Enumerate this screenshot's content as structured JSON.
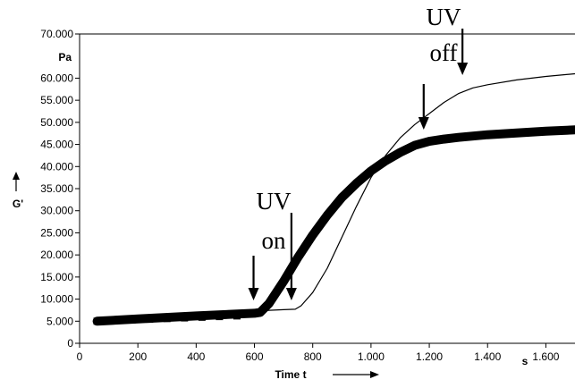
{
  "chart_data": {
    "type": "line",
    "title": "",
    "xlabel": "Time t",
    "xunit": "s",
    "ylabel": "G'",
    "yunit": "Pa",
    "xlim": [
      0,
      1700
    ],
    "ylim": [
      0,
      70000
    ],
    "x_tick_values": [
      0,
      200,
      400,
      600,
      800,
      1000,
      1200,
      1400,
      1600
    ],
    "x_tick_labels": [
      "0",
      "200",
      "400",
      "600",
      "800",
      "1.000",
      "1.200",
      "1.400",
      "1.600"
    ],
    "y_tick_values": [
      0,
      5000,
      10000,
      15000,
      20000,
      25000,
      30000,
      35000,
      40000,
      45000,
      50000,
      55000,
      60000,
      70000
    ],
    "y_tick_labels": [
      "0",
      "5.000",
      "10.000",
      "15.000",
      "20.000",
      "25.000",
      "30.000",
      "35.000",
      "40.000",
      "45.000",
      "50.000",
      "55.000",
      "60.000",
      "70.000"
    ],
    "grid": false,
    "series": [
      {
        "style": "thin-line",
        "x": [
          60,
          200,
          400,
          600,
          700,
          740,
          760,
          800,
          850,
          900,
          950,
          1000,
          1050,
          1100,
          1150,
          1200,
          1250,
          1300,
          1350,
          1400,
          1500,
          1600,
          1700
        ],
        "y": [
          5300,
          5800,
          6600,
          7300,
          7600,
          7700,
          8500,
          11500,
          17000,
          24000,
          31000,
          37500,
          42500,
          46500,
          49500,
          52000,
          54500,
          56500,
          57800,
          58500,
          59600,
          60400,
          61000
        ]
      },
      {
        "style": "thick-line-with-square-markers",
        "x": [
          60,
          200,
          400,
          600,
          620,
          650,
          700,
          750,
          800,
          850,
          900,
          950,
          1000,
          1050,
          1100,
          1150,
          1200,
          1250,
          1300,
          1400,
          1500,
          1600,
          1700
        ],
        "y": [
          5000,
          5500,
          6200,
          6800,
          7000,
          9000,
          14000,
          19500,
          24500,
          29000,
          33000,
          36200,
          39000,
          41300,
          43200,
          44800,
          45700,
          46200,
          46600,
          47200,
          47600,
          48000,
          48300
        ],
        "marker_x": [
          60,
          120,
          180,
          240,
          300,
          360,
          420,
          480,
          540
        ],
        "marker_y": [
          5000,
          5150,
          5300,
          5450,
          5600,
          5750,
          5900,
          6050,
          6200
        ]
      }
    ],
    "annotations": [
      {
        "lines": [
          "UV",
          "on"
        ],
        "arrows_at_x": [
          600,
          730
        ]
      },
      {
        "lines": [
          "UV",
          "off"
        ],
        "arrows_at_x": [
          1190,
          1320
        ]
      }
    ]
  }
}
